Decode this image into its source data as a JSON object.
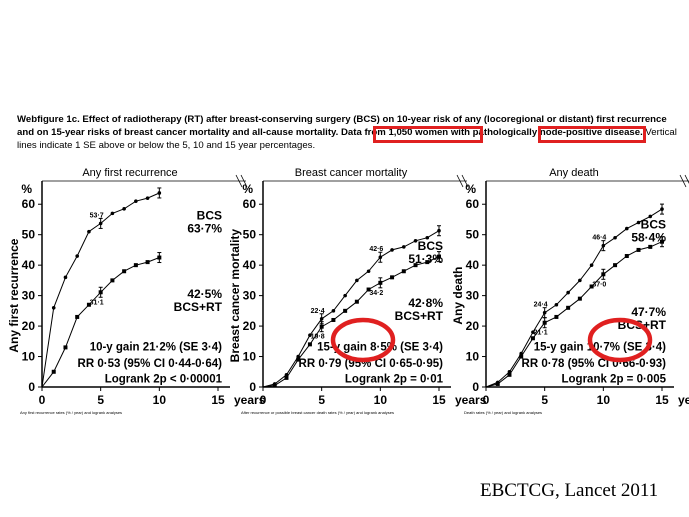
{
  "caption": {
    "label": "Webfigure 1c.",
    "bold_text": "Effect of radiotherapy (RT) after breast-conserving surgery (BCS) on 10-year risk of any (locoregional or distant) first recurrence and on 15-year risks of breast cancer mortality and all-cause mortality. Data from 1,050 women with pathologically node-positive disease.",
    "plain_text": "Vertical lines indicate 1 SE above or below the 5, 10 and 15 year percentages."
  },
  "highlight_color": "#e02020",
  "citation": "EBCTCG, Lancet 2011",
  "chart_data": [
    {
      "type": "line",
      "title": "Any first recurrence",
      "ylabel": "Any first recurrence",
      "y_unit": "%",
      "x_unit": "years",
      "xlim": [
        0,
        15
      ],
      "ylim": [
        0,
        60
      ],
      "xticks": [
        0,
        5,
        10,
        15
      ],
      "yticks": [
        0,
        10,
        20,
        30,
        40,
        50,
        60
      ],
      "series": [
        {
          "name": "BCS",
          "end_label": "63·7%",
          "marker": "circle",
          "x": [
            0,
            1,
            2,
            3,
            4,
            5,
            6,
            7,
            8,
            9,
            10
          ],
          "y": [
            0,
            26,
            36,
            43,
            51,
            53.7,
            57,
            58.5,
            61,
            62,
            63.7
          ]
        },
        {
          "name": "BCS+RT",
          "end_label": "42·5%",
          "marker": "square",
          "x": [
            0,
            1,
            2,
            3,
            4,
            5,
            6,
            7,
            8,
            9,
            10
          ],
          "y": [
            0,
            5,
            13,
            23,
            27,
            31.1,
            35,
            38,
            40,
            41,
            42.5
          ]
        }
      ],
      "point_labels": [
        {
          "x": 5,
          "y": 53.7,
          "text": "53·7"
        },
        {
          "x": 5,
          "y": 31.1,
          "text": "31·1"
        }
      ],
      "stats": [
        "10-y gain 21·2% (SE 3·4)",
        "RR 0·53 (95% CI 0·44-0·64)",
        "Logrank 2p < 0·00001"
      ],
      "footnote": "Any first recurrence rates (% / year) and logrank analyses"
    },
    {
      "type": "line",
      "title": "Breast cancer mortality",
      "ylabel": "Breast cancer mortality",
      "y_unit": "%",
      "x_unit": "years",
      "xlim": [
        0,
        15
      ],
      "ylim": [
        0,
        60
      ],
      "xticks": [
        0,
        5,
        10,
        15
      ],
      "yticks": [
        0,
        10,
        20,
        30,
        40,
        50,
        60
      ],
      "series": [
        {
          "name": "BCS",
          "end_label": "51·3%",
          "marker": "circle",
          "x": [
            0,
            1,
            2,
            3,
            4,
            5,
            6,
            7,
            8,
            9,
            10,
            11,
            12,
            13,
            14,
            15
          ],
          "y": [
            0,
            1,
            4,
            10,
            17,
            22.4,
            25,
            30,
            35,
            38,
            42.6,
            45,
            46,
            48,
            49,
            51.3
          ]
        },
        {
          "name": "BCS+RT",
          "end_label": "42·8%",
          "marker": "square",
          "x": [
            0,
            1,
            2,
            3,
            4,
            5,
            6,
            7,
            8,
            9,
            10,
            11,
            12,
            13,
            14,
            15
          ],
          "y": [
            0,
            0.5,
            3,
            9,
            14,
            19.8,
            22,
            25,
            28,
            32,
            34.2,
            36,
            38,
            40,
            41,
            42.8
          ]
        }
      ],
      "point_labels": [
        {
          "x": 5,
          "y": 22.4,
          "text": "22·4"
        },
        {
          "x": 5,
          "y": 19.8,
          "text": "19·8"
        },
        {
          "x": 10,
          "y": 42.6,
          "text": "42·6"
        },
        {
          "x": 10,
          "y": 34.2,
          "text": "34·2"
        }
      ],
      "stats": [
        "15-y gain 8·5% (SE 3·4)",
        "RR 0·79 (95% CI 0·65-0·95)",
        "Logrank 2p = 0·01"
      ],
      "footnote": "After recurrence or possible breast cancer death rates (% / year) and logrank analyses"
    },
    {
      "type": "line",
      "title": "Any death",
      "ylabel": "Any death",
      "y_unit": "%",
      "x_unit": "years",
      "xlim": [
        0,
        15
      ],
      "ylim": [
        0,
        60
      ],
      "xticks": [
        0,
        5,
        10,
        15
      ],
      "yticks": [
        0,
        10,
        20,
        30,
        40,
        50,
        60
      ],
      "series": [
        {
          "name": "BCS",
          "end_label": "58·4%",
          "marker": "circle",
          "x": [
            0,
            1,
            2,
            3,
            4,
            5,
            6,
            7,
            8,
            9,
            10,
            11,
            12,
            13,
            14,
            15
          ],
          "y": [
            0,
            1.5,
            5,
            11,
            18,
            24.4,
            27,
            31,
            35,
            40,
            46.4,
            49,
            52,
            54,
            56,
            58.4
          ]
        },
        {
          "name": "BCS+RT",
          "end_label": "47·7%",
          "marker": "square",
          "x": [
            0,
            1,
            2,
            3,
            4,
            5,
            6,
            7,
            8,
            9,
            10,
            11,
            12,
            13,
            14,
            15
          ],
          "y": [
            0,
            1,
            4,
            10,
            16,
            21.1,
            23,
            26,
            29,
            33,
            37,
            40,
            43,
            45,
            46,
            47.7
          ]
        }
      ],
      "point_labels": [
        {
          "x": 5,
          "y": 24.4,
          "text": "24·4"
        },
        {
          "x": 5,
          "y": 21.1,
          "text": "21·1"
        },
        {
          "x": 10,
          "y": 46.4,
          "text": "46·4"
        },
        {
          "x": 10,
          "y": 37.0,
          "text": "37·0"
        }
      ],
      "stats": [
        "15-y gain 10·7% (SE 3·4)",
        "RR 0·78 (95% CI 0·66-0·93)",
        "Logrank 2p = 0·005"
      ],
      "footnote": "Death rates (% / year) and logrank analyses"
    }
  ]
}
